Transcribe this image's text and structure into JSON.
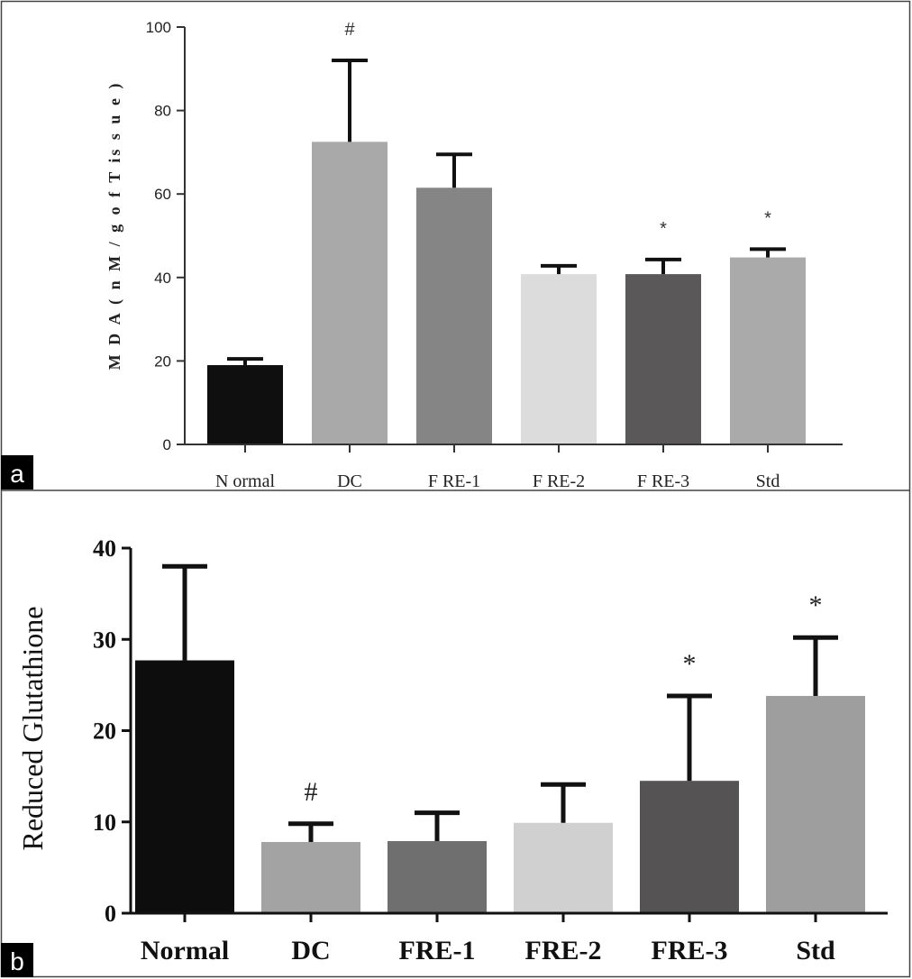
{
  "chart_data": [
    {
      "type": "bar",
      "panel": "a",
      "title": "",
      "xlabel": "",
      "ylabel": "M D A ( n M / g o f T is s u e )",
      "ylim": [
        0,
        100
      ],
      "yticks": [
        "0",
        "20",
        "40",
        "60",
        "80",
        "100"
      ],
      "categories": [
        "N ormal",
        "DC",
        "F RE-1",
        "F RE-2",
        "F RE-3",
        "Std"
      ],
      "values": [
        19,
        72.5,
        61.5,
        40.8,
        40.8,
        44.8
      ],
      "errors": [
        1.5,
        19.5,
        8,
        2,
        3.5,
        2
      ],
      "annotations": [
        "",
        "#",
        "",
        "",
        "*",
        "*"
      ],
      "colors": [
        "#0f0f0f",
        "#a9a9a9",
        "#858585",
        "#dcdcdc",
        "#5a5858",
        "#aaaaaa"
      ],
      "grid": false
    },
    {
      "type": "bar",
      "panel": "b",
      "title": "",
      "xlabel": "",
      "ylabel": "Reduced Glutathione",
      "ylim": [
        0,
        40
      ],
      "yticks": [
        "0",
        "10",
        "20",
        "30",
        "40"
      ],
      "categories": [
        "Normal",
        "DC",
        "FRE-1",
        "FRE-2",
        "FRE-3",
        "Std"
      ],
      "values": [
        27.7,
        7.8,
        7.9,
        9.9,
        14.5,
        23.8
      ],
      "errors": [
        10.3,
        2.0,
        3.1,
        4.2,
        9.3,
        6.4
      ],
      "annotations": [
        "",
        "#",
        "",
        "",
        "*",
        "*"
      ],
      "colors": [
        "#0d0d0d",
        "#a3a3a3",
        "#6f6f6f",
        "#d0d0d0",
        "#555353",
        "#9e9e9e"
      ],
      "grid": false
    }
  ]
}
